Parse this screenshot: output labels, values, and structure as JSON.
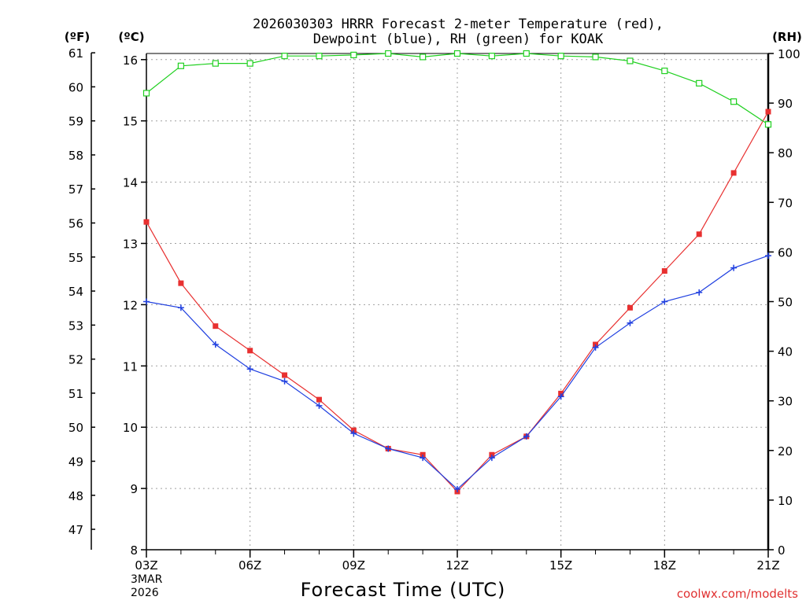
{
  "chart_data": {
    "type": "line",
    "title_line1": "2026030303 HRRR Forecast 2-meter Temperature (red),",
    "title_line2": "Dewpoint (blue), RH (green) for KOAK",
    "xlabel": "Forecast Time (UTC)",
    "source": "coolwx.com/modelts",
    "date_label": [
      "3MAR",
      "2026"
    ],
    "units": {
      "fahrenheit": "(ºF)",
      "celsius": "(ºC)",
      "rh": "(RH)"
    },
    "x_hours": [
      3,
      4,
      5,
      6,
      7,
      8,
      9,
      10,
      11,
      12,
      13,
      14,
      15,
      16,
      17,
      18,
      19,
      20,
      21
    ],
    "x_ticks": [
      {
        "hour": 3,
        "label": "03Z"
      },
      {
        "hour": 6,
        "label": "06Z"
      },
      {
        "hour": 9,
        "label": "09Z"
      },
      {
        "hour": 12,
        "label": "12Z"
      },
      {
        "hour": 15,
        "label": "15Z"
      },
      {
        "hour": 18,
        "label": "18Z"
      },
      {
        "hour": 21,
        "label": "21Z"
      }
    ],
    "xlim": [
      3,
      21
    ],
    "ylim_c": [
      8,
      16.1
    ],
    "ylim_rh": [
      0,
      100
    ],
    "y_ticks_c": [
      "8",
      "9",
      "10",
      "11",
      "12",
      "13",
      "14",
      "15",
      "16"
    ],
    "y_ticks_f": [
      "47",
      "48",
      "49",
      "50",
      "51",
      "52",
      "53",
      "54",
      "55",
      "56",
      "57",
      "58",
      "59",
      "60",
      "61"
    ],
    "y_ticks_rh": [
      "0",
      "10",
      "20",
      "30",
      "40",
      "50",
      "60",
      "70",
      "80",
      "90",
      "100"
    ],
    "series": [
      {
        "name": "Temperature",
        "unit": "C",
        "color": "#e83030",
        "marker": "filled-square",
        "values": [
          13.35,
          12.35,
          11.65,
          11.25,
          10.85,
          10.45,
          9.95,
          9.65,
          9.55,
          8.95,
          9.55,
          9.85,
          10.55,
          11.35,
          11.95,
          12.55,
          13.15,
          14.15,
          15.15
        ]
      },
      {
        "name": "Dewpoint",
        "unit": "C",
        "color": "#2040e0",
        "marker": "plus",
        "values": [
          12.05,
          11.95,
          11.35,
          10.95,
          10.75,
          10.35,
          9.9,
          9.65,
          9.5,
          8.99,
          9.5,
          9.85,
          10.5,
          11.3,
          11.7,
          12.05,
          12.2,
          12.6,
          12.8
        ]
      },
      {
        "name": "RH",
        "unit": "%",
        "color": "#20d020",
        "marker": "open-square",
        "values": [
          92,
          97.5,
          98,
          98,
          99.5,
          99.5,
          99.7,
          100,
          99.3,
          100,
          99.5,
          100,
          99.5,
          99.3,
          98.5,
          96.5,
          94,
          90.3,
          85.7
        ]
      }
    ]
  }
}
